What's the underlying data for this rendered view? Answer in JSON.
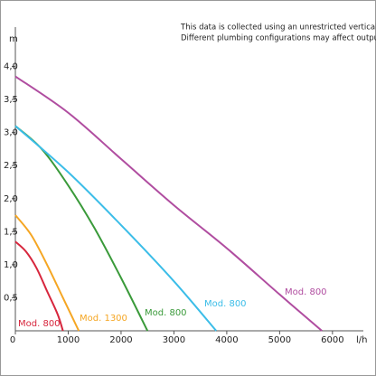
{
  "chart_data": {
    "type": "line",
    "annotation": [
      "This data is collected using an unrestricted vertical pipe.",
      "Different plumbing configurations may affect output."
    ],
    "y_label": "m",
    "x_label": "l/h",
    "xlim": [
      0,
      6550
    ],
    "ylim": [
      0,
      4.5
    ],
    "xticks": [
      0,
      1000,
      2000,
      3000,
      4000,
      5000,
      6000
    ],
    "yticks": [
      {
        "value": 0.5,
        "label": "0,5"
      },
      {
        "value": 1.0,
        "label": "1,0"
      },
      {
        "value": 1.5,
        "label": "1,5"
      },
      {
        "value": 2.0,
        "label": "2,0"
      },
      {
        "value": 2.5,
        "label": "2,5"
      },
      {
        "value": 3.0,
        "label": "3,0"
      },
      {
        "value": 3.5,
        "label": "3,5"
      },
      {
        "value": 4.0,
        "label": "4,0"
      }
    ],
    "series": [
      {
        "name": "Mod. 800",
        "color": "#d7263d",
        "x": [
          0,
          200,
          400,
          600,
          800,
          900
        ],
        "values": [
          1.35,
          1.2,
          0.95,
          0.6,
          0.25,
          0
        ]
      },
      {
        "name": "Mod. 1300",
        "color": "#f5a623",
        "x": [
          0,
          300,
          600,
          900,
          1200
        ],
        "values": [
          1.75,
          1.45,
          1.0,
          0.5,
          0
        ]
      },
      {
        "name": "Mod. 800",
        "color": "#3a9a3a",
        "x": [
          0,
          500,
          1000,
          1500,
          2000,
          2500
        ],
        "values": [
          3.1,
          2.75,
          2.2,
          1.55,
          0.8,
          0
        ]
      },
      {
        "name": "Mod. 800",
        "color": "#3bbde8",
        "x": [
          0,
          1000,
          2000,
          3000,
          3800
        ],
        "values": [
          3.1,
          2.4,
          1.6,
          0.75,
          0
        ]
      },
      {
        "name": "Mod. 800",
        "color": "#b04da0",
        "x": [
          0,
          1000,
          2000,
          3000,
          4000,
          5000,
          5800
        ],
        "values": [
          3.85,
          3.3,
          2.6,
          1.9,
          1.25,
          0.55,
          0
        ]
      }
    ]
  }
}
